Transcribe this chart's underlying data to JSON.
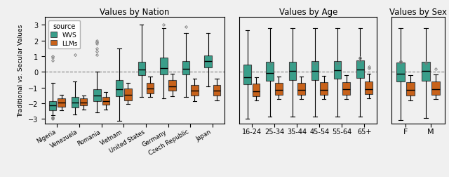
{
  "title_nation": "Values by Nation",
  "title_age": "Values by Age",
  "title_sex": "Values by Sex",
  "ylabel": "Traditional vs. Secular Values",
  "wvs_color": "#3a9e8a",
  "llm_color": "#c8621a",
  "nation_categories": [
    "Nigeria",
    "Venezuela",
    "Romania",
    "Vietnam",
    "United States",
    "Germany",
    "Czech Republic",
    "Japan"
  ],
  "age_categories": [
    "16-24",
    "25-34",
    "35-44",
    "45-54",
    "55-64",
    "65+"
  ],
  "sex_categories": [
    "F",
    "M"
  ],
  "nation_wvs": {
    "Nigeria": {
      "q1": -2.45,
      "med": -2.15,
      "q3": -1.85,
      "whislo": -2.75,
      "whishi": -0.7,
      "fliers_lo": [
        -2.9,
        -2.95,
        -3.0
      ],
      "fliers_hi": [
        0.75,
        0.9,
        1.0
      ]
    },
    "Venezuela": {
      "q1": -2.25,
      "med": -1.95,
      "q3": -1.6,
      "whislo": -2.7,
      "whishi": -0.6,
      "fliers_lo": [],
      "fliers_hi": [
        1.1
      ]
    },
    "Romania": {
      "q1": -1.85,
      "med": -1.5,
      "q3": -1.1,
      "whislo": -2.6,
      "whishi": 0.0,
      "fliers_lo": [],
      "fliers_hi": [
        1.1,
        1.3,
        1.5,
        1.8,
        1.9,
        2.0
      ]
    },
    "Vietnam": {
      "q1": -1.55,
      "med": -1.1,
      "q3": -0.5,
      "whislo": -3.1,
      "whishi": 1.5,
      "fliers_lo": [],
      "fliers_hi": []
    },
    "United States": {
      "q1": -0.2,
      "med": 0.15,
      "q3": 0.65,
      "whislo": -1.6,
      "whishi": 3.0,
      "fliers_lo": [],
      "fliers_hi": []
    },
    "Germany": {
      "q1": -0.15,
      "med": 0.25,
      "q3": 0.9,
      "whislo": -1.7,
      "whishi": 2.8,
      "fliers_lo": [],
      "fliers_hi": [
        3.0
      ]
    },
    "Czech Republic": {
      "q1": -0.15,
      "med": 0.2,
      "q3": 0.7,
      "whislo": -1.6,
      "whishi": 2.5,
      "fliers_lo": [
        2.9
      ],
      "fliers_hi": []
    },
    "Japan": {
      "q1": 0.3,
      "med": 0.7,
      "q3": 1.05,
      "whislo": -0.9,
      "whishi": 2.5,
      "fliers_lo": [],
      "fliers_hi": []
    }
  },
  "nation_llm": {
    "Nigeria": {
      "q1": -2.2,
      "med": -1.95,
      "q3": -1.7,
      "whislo": -2.45,
      "whishi": -1.45,
      "fliers_lo": [],
      "fliers_hi": []
    },
    "Venezuela": {
      "q1": -2.15,
      "med": -1.95,
      "q3": -1.7,
      "whislo": -2.4,
      "whishi": -1.5,
      "fliers_lo": [],
      "fliers_hi": []
    },
    "Romania": {
      "q1": -2.1,
      "med": -1.85,
      "q3": -1.6,
      "whislo": -2.4,
      "whishi": -1.3,
      "fliers_lo": [],
      "fliers_hi": []
    },
    "Vietnam": {
      "q1": -1.8,
      "med": -1.45,
      "q3": -1.05,
      "whislo": -2.05,
      "whishi": -0.7,
      "fliers_lo": [],
      "fliers_hi": []
    },
    "United States": {
      "q1": -1.35,
      "med": -1.05,
      "q3": -0.7,
      "whislo": -1.6,
      "whishi": -0.3,
      "fliers_lo": [],
      "fliers_hi": []
    },
    "Germany": {
      "q1": -1.2,
      "med": -0.9,
      "q3": -0.5,
      "whislo": -1.55,
      "whishi": -0.1,
      "fliers_lo": [],
      "fliers_hi": []
    },
    "Czech Republic": {
      "q1": -1.5,
      "med": -1.2,
      "q3": -0.85,
      "whislo": -1.85,
      "whishi": -0.45,
      "fliers_lo": [],
      "fliers_hi": []
    },
    "Japan": {
      "q1": -1.5,
      "med": -1.2,
      "q3": -0.85,
      "whislo": -1.8,
      "whishi": -0.45,
      "fliers_lo": [],
      "fliers_hi": []
    }
  },
  "age_wvs": {
    "16-24": {
      "q1": -0.8,
      "med": -0.35,
      "q3": 0.45,
      "whislo": -3.0,
      "whishi": 2.65,
      "fliers_lo": [],
      "fliers_hi": []
    },
    "25-34": {
      "q1": -0.55,
      "med": -0.05,
      "q3": 0.65,
      "whislo": -2.85,
      "whishi": 2.8,
      "fliers_lo": [],
      "fliers_hi": [
        0.55
      ]
    },
    "35-44": {
      "q1": -0.5,
      "med": 0.05,
      "q3": 0.65,
      "whislo": -2.85,
      "whishi": 2.8,
      "fliers_lo": [],
      "fliers_hi": []
    },
    "45-54": {
      "q1": -0.5,
      "med": 0.05,
      "q3": 0.7,
      "whislo": -2.85,
      "whishi": 2.8,
      "fliers_lo": [],
      "fliers_hi": [
        0.55
      ]
    },
    "55-64": {
      "q1": -0.45,
      "med": 0.1,
      "q3": 0.7,
      "whislo": -2.85,
      "whishi": 2.8,
      "fliers_lo": [],
      "fliers_hi": [
        0.55
      ]
    },
    "65+": {
      "q1": -0.4,
      "med": 0.15,
      "q3": 0.75,
      "whislo": -2.85,
      "whishi": 2.8,
      "fliers_lo": [],
      "fliers_hi": [
        0.7,
        0.85,
        0.9
      ]
    }
  },
  "age_llm": {
    "16-24": {
      "q1": -1.55,
      "med": -1.25,
      "q3": -0.75,
      "whislo": -1.8,
      "whishi": -0.35,
      "fliers_lo": [],
      "fliers_hi": []
    },
    "25-34": {
      "q1": -1.45,
      "med": -1.15,
      "q3": -0.7,
      "whislo": -1.75,
      "whishi": -0.3,
      "fliers_lo": [],
      "fliers_hi": []
    },
    "35-44": {
      "q1": -1.45,
      "med": -1.15,
      "q3": -0.7,
      "whislo": -1.75,
      "whishi": -0.3,
      "fliers_lo": [],
      "fliers_hi": []
    },
    "45-54": {
      "q1": -1.45,
      "med": -1.15,
      "q3": -0.65,
      "whislo": -1.75,
      "whishi": -0.25,
      "fliers_lo": [],
      "fliers_hi": []
    },
    "55-64": {
      "q1": -1.45,
      "med": -1.1,
      "q3": -0.65,
      "whislo": -1.75,
      "whishi": -0.2,
      "fliers_lo": [],
      "fliers_hi": []
    },
    "65+": {
      "q1": -1.4,
      "med": -1.1,
      "q3": -0.6,
      "whislo": -1.7,
      "whishi": -0.1,
      "fliers_lo": [],
      "fliers_hi": [
        0.25,
        0.35
      ]
    }
  },
  "sex_wvs": {
    "F": {
      "q1": -0.6,
      "med": -0.1,
      "q3": 0.6,
      "whislo": -3.05,
      "whishi": 2.8,
      "fliers_lo": [],
      "fliers_hi": [
        0.6,
        0.65,
        0.7
      ]
    },
    "M": {
      "q1": -0.55,
      "med": 0.05,
      "q3": 0.65,
      "whislo": -2.95,
      "whishi": 2.8,
      "fliers_lo": [],
      "fliers_hi": [
        0.55,
        0.6
      ]
    }
  },
  "sex_llm": {
    "F": {
      "q1": -1.5,
      "med": -1.15,
      "q3": -0.65,
      "whislo": -1.8,
      "whishi": -0.2,
      "fliers_lo": [],
      "fliers_hi": []
    },
    "M": {
      "q1": -1.45,
      "med": -1.1,
      "q3": -0.6,
      "whislo": -1.75,
      "whishi": -0.15,
      "fliers_lo": [],
      "fliers_hi": [
        0.2
      ]
    }
  },
  "ylim": [
    -3.3,
    3.5
  ],
  "background_color": "#f0f0f0",
  "flier_marker": "D",
  "flier_size": 2.0
}
